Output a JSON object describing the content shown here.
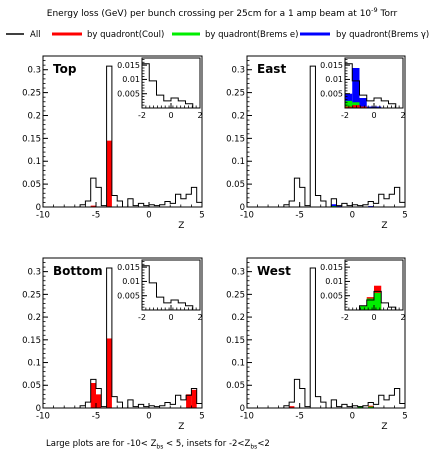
{
  "header": {
    "title_prefix": "Energy loss (GeV) per bunch crossing per 25cm  for a 1 amp beam at 10",
    "title_exp": "-9",
    "title_suffix": " Torr"
  },
  "legend": [
    {
      "label": "All",
      "color": "#000000"
    },
    {
      "label": "by quadront(Coul)",
      "color": "#ff0000"
    },
    {
      "label": "by quadront(Brems e)",
      "color": "#00ee00"
    },
    {
      "label": "by quadront(Brems γ)",
      "color": "#0000ff"
    }
  ],
  "footer": {
    "p1": "Large plots are for -10< Z",
    "s1": "bs",
    "p2": " < 5, insets for -2<Z",
    "s2": "bs",
    "p3": "<2"
  },
  "colors": {
    "all": "#000000",
    "coul": "#ff0000",
    "brems_e": "#00ee00",
    "brems_gamma": "#0000ff"
  },
  "chart_data": [
    {
      "type": "bar",
      "panel": "Top",
      "xlabel": "Z",
      "xlim": [
        -10,
        5
      ],
      "ylim": [
        0,
        0.33
      ],
      "xticks": [
        -10,
        -5,
        0,
        5
      ],
      "yticks": [
        "0",
        "0.05",
        "0.1",
        "0.15",
        "0.2",
        "0.25",
        "0.3"
      ],
      "bin_edges": [
        -10,
        -9.5,
        -9,
        -8.5,
        -8,
        -7.5,
        -7,
        -6.5,
        -6,
        -5.5,
        -5,
        -4.5,
        -4,
        -3.5,
        -3,
        -2.5,
        -2,
        -1.5,
        -1,
        -0.5,
        0,
        0.5,
        1,
        1.5,
        2,
        2.5,
        3,
        3.5,
        4,
        4.5,
        5
      ],
      "series": [
        {
          "name": "All",
          "values": [
            0,
            0,
            0,
            0,
            0,
            0,
            0,
            0.005,
            0.013,
            0.063,
            0.043,
            0.003,
            0.308,
            0.025,
            0.013,
            0,
            0.018,
            0.003,
            0.008,
            0.003,
            0.005,
            0.003,
            0.005,
            0.012,
            0.008,
            0.028,
            0.018,
            0.028,
            0.043,
            0.01
          ]
        },
        {
          "name": "by quadront(Coul)",
          "values": [
            0,
            0,
            0,
            0,
            0,
            0,
            0,
            0,
            0,
            0.003,
            0,
            0,
            0.145,
            0,
            0,
            0,
            0,
            0,
            0,
            0,
            0,
            0,
            0,
            0,
            0,
            0,
            0,
            0,
            0,
            0
          ]
        }
      ],
      "inset": {
        "xlim": [
          -2,
          2
        ],
        "ylim": [
          0,
          0.0175
        ],
        "xticks": [
          -2,
          0,
          2
        ],
        "yticks": [
          "0.005",
          "0.01",
          "0.015"
        ],
        "bin_edges": [
          -2,
          -1.5,
          -1,
          -0.5,
          0,
          0.5,
          1,
          1.5,
          2
        ],
        "series": [
          {
            "name": "All",
            "values": [
              0.0155,
              0.0095,
              0.0045,
              0.0025,
              0.0035,
              0.0025,
              0.0015,
              0
            ]
          }
        ]
      }
    },
    {
      "type": "bar",
      "panel": "East",
      "xlabel": "Z",
      "xlim": [
        -10,
        5
      ],
      "ylim": [
        0,
        0.33
      ],
      "xticks": [
        -10,
        -5,
        0,
        5
      ],
      "yticks": [
        "0",
        "0.05",
        "0.1",
        "0.15",
        "0.2",
        "0.25",
        "0.3"
      ],
      "bin_edges": [
        -10,
        -9.5,
        -9,
        -8.5,
        -8,
        -7.5,
        -7,
        -6.5,
        -6,
        -5.5,
        -5,
        -4.5,
        -4,
        -3.5,
        -3,
        -2.5,
        -2,
        -1.5,
        -1,
        -0.5,
        0,
        0.5,
        1,
        1.5,
        2,
        2.5,
        3,
        3.5,
        4,
        4.5,
        5
      ],
      "series": [
        {
          "name": "All",
          "values": [
            0,
            0,
            0,
            0,
            0,
            0,
            0,
            0.005,
            0.013,
            0.063,
            0.043,
            0.003,
            0.308,
            0.025,
            0.013,
            0,
            0.018,
            0.003,
            0.008,
            0.003,
            0.005,
            0.003,
            0.005,
            0.012,
            0.008,
            0.028,
            0.018,
            0.028,
            0.043,
            0.01
          ]
        },
        {
          "name": "by quadront(Brems γ)",
          "values": [
            0,
            0,
            0,
            0,
            0,
            0,
            0,
            0,
            0,
            0,
            0,
            0,
            0,
            0,
            0,
            0,
            0.006,
            0.002,
            0,
            0,
            0,
            0,
            0,
            0.002,
            0,
            0,
            0,
            0,
            0,
            0
          ]
        },
        {
          "name": "by quadront(Brems e)",
          "values": [
            0,
            0,
            0,
            0,
            0,
            0,
            0,
            0,
            0,
            0,
            0,
            0,
            0,
            0,
            0,
            0,
            0.002,
            0,
            0,
            0,
            0,
            0,
            0,
            0,
            0,
            0,
            0,
            0,
            0,
            0
          ]
        },
        {
          "name": "by quadront(Coul)",
          "values": [
            0,
            0,
            0,
            0,
            0,
            0,
            0,
            0,
            0,
            0,
            0,
            0,
            0,
            0,
            0,
            0,
            0,
            0,
            0,
            0,
            0,
            0,
            0,
            0,
            0,
            0,
            0,
            0,
            0,
            0
          ]
        }
      ],
      "inset": {
        "xlim": [
          -2,
          2
        ],
        "ylim": [
          0,
          0.0175
        ],
        "xticks": [
          -2,
          0,
          2
        ],
        "yticks": [
          "0.005",
          "0.01",
          "0.015"
        ],
        "bin_edges": [
          -2,
          -1.5,
          -1,
          -0.5,
          0,
          0.5,
          1,
          1.5,
          2
        ],
        "series": [
          {
            "name": "All",
            "values": [
              0.0155,
              0.0095,
              0.0045,
              0.0025,
              0.0035,
              0.0025,
              0.0015,
              0
            ]
          },
          {
            "name": "by quadront(Brems γ)",
            "values": [
              0.005,
              0.014,
              0.0035,
              0.0005,
              0.0005,
              0,
              0,
              0
            ]
          },
          {
            "name": "by quadront(Brems e)",
            "values": [
              0.0025,
              0.002,
              0.0005,
              0,
              0,
              0,
              0,
              0
            ]
          },
          {
            "name": "by quadront(Coul)",
            "values": [
              0.0005,
              0.001,
              0.0005,
              0,
              0,
              0,
              0,
              0
            ]
          }
        ]
      }
    },
    {
      "type": "bar",
      "panel": "Bottom",
      "xlabel": "Z",
      "xlim": [
        -10,
        5
      ],
      "ylim": [
        0,
        0.33
      ],
      "xticks": [
        -10,
        -5,
        0,
        5
      ],
      "yticks": [
        "0",
        "0.05",
        "0.1",
        "0.15",
        "0.2",
        "0.25",
        "0.3"
      ],
      "bin_edges": [
        -10,
        -9.5,
        -9,
        -8.5,
        -8,
        -7.5,
        -7,
        -6.5,
        -6,
        -5.5,
        -5,
        -4.5,
        -4,
        -3.5,
        -3,
        -2.5,
        -2,
        -1.5,
        -1,
        -0.5,
        0,
        0.5,
        1,
        1.5,
        2,
        2.5,
        3,
        3.5,
        4,
        4.5,
        5
      ],
      "series": [
        {
          "name": "All",
          "values": [
            0,
            0,
            0,
            0,
            0,
            0,
            0,
            0.005,
            0.013,
            0.063,
            0.043,
            0.003,
            0.308,
            0.025,
            0.013,
            0,
            0.018,
            0.003,
            0.008,
            0.003,
            0.005,
            0.003,
            0.005,
            0.012,
            0.008,
            0.028,
            0.018,
            0.028,
            0.043,
            0.01
          ]
        },
        {
          "name": "by quadront(Coul)",
          "values": [
            0,
            0,
            0,
            0,
            0,
            0,
            0,
            0,
            0,
            0.055,
            0.03,
            0,
            0.153,
            0,
            0,
            0,
            0,
            0,
            0,
            0,
            0,
            0,
            0,
            0,
            0,
            0,
            0,
            0.03,
            0.04,
            0
          ]
        }
      ],
      "inset": {
        "xlim": [
          -2,
          2
        ],
        "ylim": [
          0,
          0.0175
        ],
        "xticks": [
          -2,
          0,
          2
        ],
        "yticks": [
          "0.005",
          "0.01",
          "0.015"
        ],
        "bin_edges": [
          -2,
          -1.5,
          -1,
          -0.5,
          0,
          0.5,
          1,
          1.5,
          2
        ],
        "series": [
          {
            "name": "All",
            "values": [
              0.0155,
              0.0095,
              0.0045,
              0.0025,
              0.0035,
              0.0025,
              0.0015,
              0
            ]
          }
        ]
      }
    },
    {
      "type": "bar",
      "panel": "West",
      "xlabel": "Z",
      "xlim": [
        -10,
        5
      ],
      "ylim": [
        0,
        0.33
      ],
      "xticks": [
        -10,
        -5,
        0,
        5
      ],
      "yticks": [
        "0",
        "0.05",
        "0.1",
        "0.15",
        "0.2",
        "0.25",
        "0.3"
      ],
      "bin_edges": [
        -10,
        -9.5,
        -9,
        -8.5,
        -8,
        -7.5,
        -7,
        -6.5,
        -6,
        -5.5,
        -5,
        -4.5,
        -4,
        -3.5,
        -3,
        -2.5,
        -2,
        -1.5,
        -1,
        -0.5,
        0,
        0.5,
        1,
        1.5,
        2,
        2.5,
        3,
        3.5,
        4,
        4.5,
        5
      ],
      "series": [
        {
          "name": "All",
          "values": [
            0,
            0,
            0,
            0,
            0,
            0,
            0,
            0.005,
            0.013,
            0.063,
            0.043,
            0.003,
            0.308,
            0.025,
            0.013,
            0,
            0.018,
            0.003,
            0.008,
            0.003,
            0.005,
            0.003,
            0.005,
            0.012,
            0.008,
            0.028,
            0.018,
            0.028,
            0.043,
            0.01
          ]
        },
        {
          "name": "by quadront(Coul)",
          "values": [
            0,
            0,
            0,
            0,
            0,
            0,
            0,
            0,
            0.004,
            0,
            0,
            0,
            0,
            0,
            0,
            0,
            0,
            0,
            0,
            0,
            0,
            0,
            0,
            0.005,
            0,
            0,
            0,
            0,
            0,
            0
          ]
        },
        {
          "name": "by quadront(Brems e)",
          "values": [
            0,
            0,
            0,
            0,
            0,
            0,
            0,
            0,
            0,
            0,
            0,
            0,
            0,
            0,
            0,
            0,
            0,
            0,
            0,
            0,
            0,
            0.004,
            0,
            0.003,
            0,
            0,
            0,
            0,
            0,
            0
          ]
        }
      ],
      "inset": {
        "xlim": [
          -2,
          2
        ],
        "ylim": [
          0,
          0.0175
        ],
        "xticks": [
          -2,
          0,
          2
        ],
        "yticks": [
          "0.005",
          "0.01",
          "0.015"
        ],
        "bin_edges": [
          -2,
          -1.5,
          -1,
          -0.5,
          0,
          0.5,
          1,
          1.5,
          2
        ],
        "series": [
          {
            "name": "All",
            "values": [
              0,
              0,
              0.0015,
              0.0035,
              0.0065,
              0.0025,
              0.001,
              0
            ]
          },
          {
            "name": "by quadront(Coul)",
            "values": [
              0,
              0,
              0,
              0.0045,
              0.0085,
              0,
              0,
              0
            ]
          },
          {
            "name": "by quadront(Brems e)",
            "values": [
              0,
              0,
              0.0015,
              0.004,
              0.006,
              0,
              0,
              0
            ]
          }
        ]
      }
    }
  ]
}
